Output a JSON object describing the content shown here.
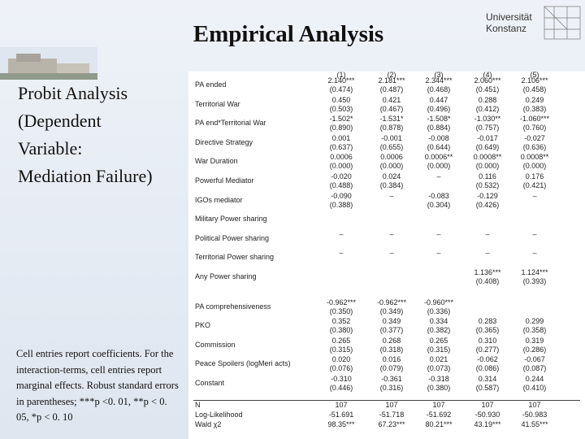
{
  "title": "Empirical Analysis",
  "logo": {
    "line1": "Universität",
    "line2": "Konstanz"
  },
  "subtitle_lines": [
    "Probit Analysis",
    "(Dependent",
    "Variable:",
    "Mediation Failure)"
  ],
  "note": "Cell entries report coefficients. For the interaction-terms, cell entries report marginal effects. Robust standard errors in parentheses; ***p <0. 01, **p < 0. 05, *p < 0. 10",
  "table": {
    "columns": [
      "(1)",
      "(2)",
      "(3)",
      "(4)",
      "(5)"
    ],
    "rows": [
      {
        "label": "PA ended",
        "coef": [
          "2.140***",
          "2.181***",
          "2.344***",
          "2.060***",
          "2.106***"
        ],
        "se": [
          "(0.474)",
          "(0.487)",
          "(0.468)",
          "(0.451)",
          "(0.458)"
        ]
      },
      {
        "label": "Territorial War",
        "coef": [
          "0.450",
          "0.421",
          "0.447",
          "0.288",
          "0.249"
        ],
        "se": [
          "(0.503)",
          "(0.467)",
          "(0.496)",
          "(0.412)",
          "(0.383)"
        ]
      },
      {
        "label": "PA end*Territorial War",
        "coef": [
          "-1.502*",
          "-1.531*",
          "-1.508*",
          "-1.030**",
          "-1.060***"
        ],
        "se": [
          "(0.890)",
          "(0.878)",
          "(0.884)",
          "(0.757)",
          "(0.760)"
        ]
      },
      {
        "label": "Directive Strategy",
        "coef": [
          "0.001",
          "-0.001",
          "-0.008",
          "-0.017",
          "-0.027"
        ],
        "se": [
          "(0.637)",
          "(0.655)",
          "(0.644)",
          "(0.649)",
          "(0.636)"
        ]
      },
      {
        "label": "War Duration",
        "coef": [
          "0.0006",
          "0.0006",
          "0.0006**",
          "0.0008**",
          "0.0008**"
        ],
        "se": [
          "(0.000)",
          "(0.000)",
          "(0.000)",
          "(0.000)",
          "(0.000)"
        ]
      },
      {
        "label": "Powerful Mediator",
        "coef": [
          "-0.020",
          "0.024",
          "–",
          "0.116",
          "0.176"
        ],
        "se": [
          "(0.488)",
          "(0.384)",
          null,
          "(0.532)",
          "(0.421)"
        ]
      },
      {
        "label": "IGOs mediator",
        "coef": [
          "-0.090",
          "–",
          "-0.083",
          "-0.129",
          "–"
        ],
        "se": [
          "(0.388)",
          null,
          "(0.304)",
          "(0.426)",
          null
        ]
      },
      {
        "label": "Military Power sharing",
        "coef": [
          null,
          null,
          null,
          null,
          null
        ],
        "se": [
          null,
          null,
          null,
          null,
          null
        ]
      },
      {
        "label": "Political Power sharing",
        "coef": [
          "–",
          "–",
          "–",
          "–",
          "–"
        ],
        "se": [
          null,
          null,
          null,
          null,
          null
        ]
      },
      {
        "label": "Territorial Power sharing",
        "coef": [
          "–",
          "–",
          "–",
          "–",
          "–"
        ],
        "se": [
          null,
          null,
          null,
          null,
          null
        ]
      },
      {
        "label": "Any Power sharing",
        "coef": [
          null,
          null,
          null,
          "1.136***",
          "1.124***"
        ],
        "se": [
          null,
          null,
          null,
          "(0.408)",
          "(0.393)"
        ]
      },
      {
        "label": "PA comprehensiveness",
        "coef": [
          "-0.962***",
          "-0.962***",
          "-0.960***",
          null,
          null
        ],
        "se": [
          "(0.350)",
          "(0.349)",
          "(0.336)",
          null,
          null
        ]
      },
      {
        "label": "PKO",
        "coef": [
          "0.352",
          "0.349",
          "0.334",
          "0.283",
          "0.299"
        ],
        "se": [
          "(0.380)",
          "(0.377)",
          "(0.382)",
          "(0.365)",
          "(0.358)"
        ]
      },
      {
        "label": "Commission",
        "coef": [
          "0.265",
          "0.268",
          "0.265",
          "0.310",
          "0.319"
        ],
        "se": [
          "(0.315)",
          "(0.318)",
          "(0.315)",
          "(0.277)",
          "(0.286)"
        ]
      },
      {
        "label": "Peace Spoilers (logMeri acts)",
        "coef": [
          "0.020",
          "0.016",
          "0.021",
          "-0.062",
          "-0.067"
        ],
        "se": [
          "(0.076)",
          "(0.079)",
          "(0.073)",
          "(0.086)",
          "(0.087)"
        ]
      },
      {
        "label": "Constant",
        "coef": [
          "-0.310",
          "-0.361",
          "-0.318",
          "0.314",
          "0.244"
        ],
        "se": [
          "(0.446)",
          "(0.316)",
          "(0.380)",
          "(0.587)",
          "(0.410)"
        ]
      }
    ],
    "stats": [
      {
        "label": "N",
        "values": [
          "107",
          "107",
          "107",
          "107",
          "107"
        ]
      },
      {
        "label": "Log-Likelihood",
        "values": [
          "-51.691",
          "-51.718",
          "-51.692",
          "-50.930",
          "-50.983"
        ]
      },
      {
        "label": "Wald χ2",
        "values": [
          "98.35***",
          "67.23***",
          "80.21***",
          "43.19***",
          "41.55***"
        ]
      }
    ]
  }
}
